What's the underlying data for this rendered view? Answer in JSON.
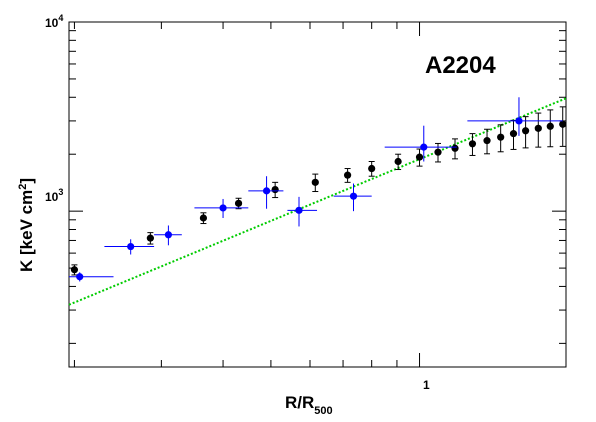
{
  "chart_data": {
    "type": "scatter",
    "annotation": "A2204",
    "xlabel": {
      "main": "R/R",
      "sub": "500"
    },
    "ylabel": {
      "main": "K [keV cm",
      "sup": "2",
      "tail": "]"
    },
    "xscale": "log",
    "yscale": "log",
    "xlim": [
      0.195,
      1.98
    ],
    "ylim": [
      150,
      10000
    ],
    "grid": false,
    "xticklabels": [
      {
        "value": 1,
        "text": "1"
      }
    ],
    "yticklabels": [
      {
        "value": 1000,
        "base": "10",
        "exp": "3"
      },
      {
        "value": 10000,
        "base": "10",
        "exp": "4"
      }
    ],
    "series": [
      {
        "color": "#000000",
        "points": [
          {
            "x": 0.2,
            "y": 490,
            "yerr": [
              30,
              30
            ]
          },
          {
            "x": 0.285,
            "y": 720,
            "yerr": [
              50,
              50
            ]
          },
          {
            "x": 0.365,
            "y": 920,
            "yerr": [
              60,
              60
            ]
          },
          {
            "x": 0.43,
            "y": 1100,
            "yerr": [
              70,
              70
            ]
          },
          {
            "x": 0.51,
            "y": 1300,
            "yerr": [
              120,
              120
            ]
          },
          {
            "x": 0.615,
            "y": 1420,
            "yerr": [
              150,
              150
            ]
          },
          {
            "x": 0.715,
            "y": 1550,
            "yerr": [
              130,
              130
            ]
          },
          {
            "x": 0.8,
            "y": 1680,
            "yerr": [
              150,
              150
            ]
          },
          {
            "x": 0.905,
            "y": 1830,
            "yerr": [
              170,
              170
            ]
          },
          {
            "x": 1.0,
            "y": 1930,
            "yerr": [
              200,
              200
            ]
          },
          {
            "x": 1.09,
            "y": 2050,
            "yerr": [
              230,
              230
            ]
          },
          {
            "x": 1.18,
            "y": 2150,
            "yerr": [
              260,
              260
            ]
          },
          {
            "x": 1.28,
            "y": 2270,
            "yerr": [
              300,
              300
            ]
          },
          {
            "x": 1.37,
            "y": 2360,
            "yerr": [
              350,
              350
            ]
          },
          {
            "x": 1.46,
            "y": 2460,
            "yerr": [
              400,
              400
            ]
          },
          {
            "x": 1.55,
            "y": 2570,
            "yerr": [
              450,
              450
            ]
          },
          {
            "x": 1.64,
            "y": 2660,
            "yerr": [
              500,
              500
            ]
          },
          {
            "x": 1.74,
            "y": 2740,
            "yerr": [
              560,
              560
            ]
          },
          {
            "x": 1.84,
            "y": 2810,
            "yerr": [
              620,
              620
            ]
          },
          {
            "x": 1.95,
            "y": 2880,
            "yerr": [
              680,
              680
            ]
          }
        ]
      },
      {
        "color": "#0000ff",
        "points": [
          {
            "x": 0.205,
            "y": 450,
            "xerr": [
              0.01,
              0.035
            ],
            "yerr": [
              25,
              25
            ]
          },
          {
            "x": 0.26,
            "y": 650,
            "xerr": [
              0.03,
              0.03
            ],
            "yerr": [
              60,
              60
            ]
          },
          {
            "x": 0.31,
            "y": 750,
            "xerr": [
              0.02,
              0.02
            ],
            "yerr": [
              90,
              90
            ]
          },
          {
            "x": 0.4,
            "y": 1040,
            "xerr": [
              0.05,
              0.05
            ],
            "yerr": [
              120,
              120
            ]
          },
          {
            "x": 0.49,
            "y": 1280,
            "xerr": [
              0.04,
              0.04
            ],
            "yerr": [
              250,
              250
            ]
          },
          {
            "x": 0.57,
            "y": 1010,
            "xerr": [
              0.03,
              0.05
            ],
            "yerr": [
              180,
              180
            ]
          },
          {
            "x": 0.735,
            "y": 1200,
            "xerr": [
              0.065,
              0.065
            ],
            "yerr": [
              200,
              200
            ]
          },
          {
            "x": 1.02,
            "y": 2180,
            "xerr": [
              0.17,
              0.17
            ],
            "yerr": [
              350,
              650
            ]
          },
          {
            "x": 1.59,
            "y": 3000,
            "xerr": [
              0.34,
              0.36
            ],
            "yerr": [
              500,
              1000
            ]
          }
        ]
      }
    ],
    "fit_line": {
      "color": "#00cc00",
      "style": "dotted",
      "points": [
        {
          "x": 0.195,
          "y": 320
        },
        {
          "x": 1.98,
          "y": 3950
        }
      ]
    }
  }
}
